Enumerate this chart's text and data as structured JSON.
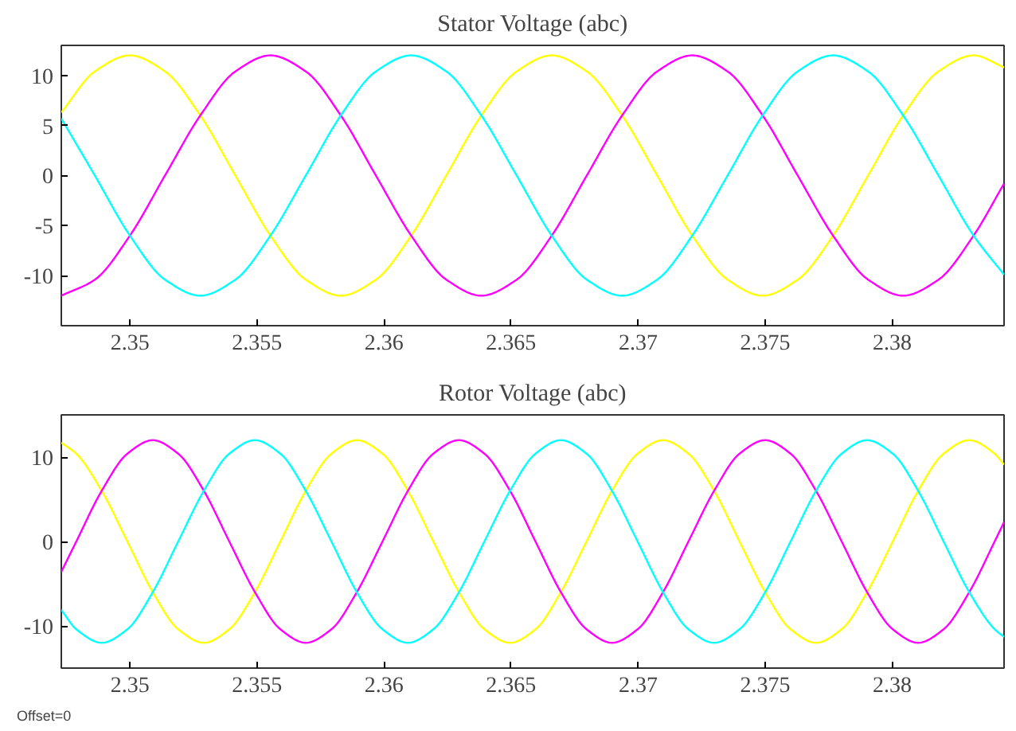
{
  "chart_data": [
    {
      "type": "line",
      "title": "Stator Voltage (abc)",
      "x": [
        2.3473,
        2.34862,
        2.35,
        2.35138,
        2.35277,
        2.35415,
        2.35553,
        2.35692,
        2.3583,
        2.35968,
        2.36107,
        2.36245,
        2.36383,
        2.36522,
        2.3666,
        2.36798,
        2.36937,
        2.37075,
        2.37213,
        2.37352,
        2.3749,
        2.37628,
        2.37767,
        2.37905,
        2.38043,
        2.38182,
        2.3832,
        2.3844
      ],
      "series": [
        {
          "color": "#ffff00",
          "values": [
            6.3,
            10.4,
            12,
            10.4,
            6,
            0,
            -6,
            -10.4,
            -12,
            -10.4,
            -6,
            0,
            6,
            10.4,
            12,
            10.4,
            6,
            0,
            -6,
            -10.4,
            -12,
            -10.4,
            -6,
            0,
            6,
            10.4,
            12,
            10.8
          ]
        },
        {
          "color": "#ff00ff",
          "values": [
            -12.0,
            -10.4,
            -6,
            0,
            6,
            10.4,
            12,
            10.4,
            6,
            0,
            -6,
            -10.4,
            -12,
            -10.4,
            -6,
            0,
            6,
            10.4,
            12,
            10.4,
            6,
            0,
            -6,
            -10.4,
            -12,
            -10.4,
            -6,
            -0.8
          ]
        },
        {
          "color": "#00ffff",
          "values": [
            5.7,
            0,
            -6,
            -10.4,
            -12,
            -10.4,
            -6,
            0,
            6,
            10.4,
            12,
            10.4,
            6,
            0,
            -6,
            -10.4,
            -12,
            -10.4,
            -6,
            0,
            6,
            10.4,
            12,
            10.4,
            6,
            0,
            -6,
            -9.9
          ]
        }
      ],
      "xlim": [
        2.3473,
        2.3844
      ],
      "ylim": [
        -15,
        13
      ],
      "xticks": [
        2.35,
        2.355,
        2.36,
        2.365,
        2.37,
        2.375,
        2.38
      ],
      "yticks": [
        -10,
        -5,
        0,
        5,
        10
      ]
    },
    {
      "type": "line",
      "title": "Rotor Voltage (abc)",
      "x": [
        2.3473,
        2.34789,
        2.34889,
        2.3499,
        2.3509,
        2.3519,
        2.35291,
        2.35391,
        2.35492,
        2.35592,
        2.35692,
        2.35793,
        2.35893,
        2.35994,
        2.36094,
        2.36194,
        2.36295,
        2.36395,
        2.36496,
        2.36596,
        2.36696,
        2.36797,
        2.36897,
        2.36998,
        2.37098,
        2.37198,
        2.37299,
        2.37399,
        2.375,
        2.376,
        2.377,
        2.37801,
        2.37901,
        2.38002,
        2.38102,
        2.38202,
        2.38303,
        2.38403,
        2.3844
      ],
      "series": [
        {
          "color": "#ffff00",
          "values": [
            11.7,
            10.4,
            6,
            0,
            -6,
            -10.4,
            -12,
            -10.4,
            -6,
            0,
            6,
            10.4,
            12,
            10.4,
            6,
            0,
            -6,
            -10.4,
            -12,
            -10.4,
            -6,
            0,
            6,
            10.4,
            12,
            10.4,
            6,
            0,
            -6,
            -10.4,
            -12,
            -10.4,
            -6,
            0,
            6,
            10.4,
            12,
            10.4,
            9.1
          ]
        },
        {
          "color": "#ff00ff",
          "values": [
            -3.6,
            0,
            6,
            10.4,
            12,
            10.4,
            6,
            0,
            -6,
            -10.4,
            -12,
            -10.4,
            -6,
            0,
            6,
            10.4,
            12,
            10.4,
            6,
            0,
            -6,
            -10.4,
            -12,
            -10.4,
            -6,
            0,
            6,
            10.4,
            12,
            10.4,
            6,
            0,
            -6,
            -10.4,
            -12,
            -10.4,
            -6,
            0,
            2.3
          ]
        },
        {
          "color": "#00ffff",
          "values": [
            -8.1,
            -10.4,
            -12,
            -10.4,
            -6,
            0,
            6,
            10.4,
            12,
            10.4,
            6,
            0,
            -6,
            -10.4,
            -12,
            -10.4,
            -6,
            0,
            6,
            10.4,
            12,
            10.4,
            6,
            0,
            -6,
            -10.4,
            -12,
            -10.4,
            -6,
            0,
            6,
            10.4,
            12,
            10.4,
            6,
            0,
            -6,
            -10.4,
            -11.3
          ]
        }
      ],
      "xlim": [
        2.3473,
        2.3844
      ],
      "ylim": [
        -15,
        15
      ],
      "xticks": [
        2.35,
        2.355,
        2.36,
        2.365,
        2.37,
        2.375,
        2.38
      ],
      "yticks": [
        -10,
        0,
        10
      ],
      "annotations": [
        "Offset=0"
      ]
    }
  ]
}
